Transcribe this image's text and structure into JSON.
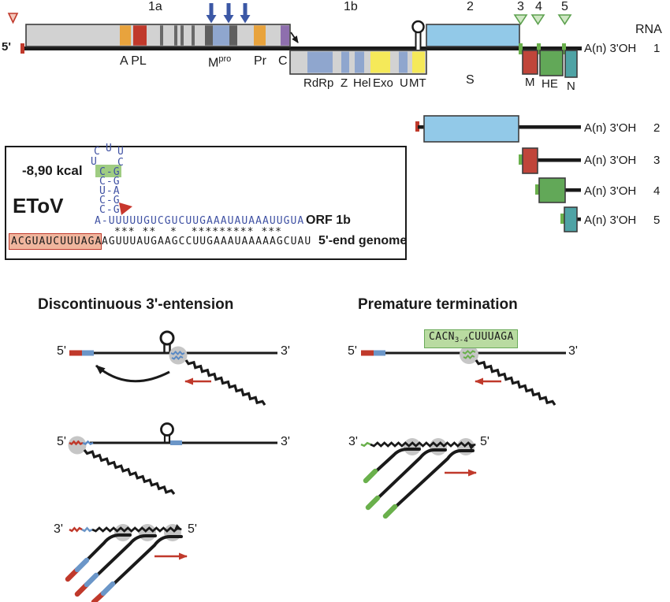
{
  "colors": {
    "line_black": "#1a1a1a",
    "box_gray": "#d2d2d2",
    "box_stroke": "#3d3d3d",
    "orange": "#e8a33d",
    "red": "#c0392b",
    "red_box_m": "#c0453a",
    "steel_blue_domain": "#8fa6ce",
    "purple": "#8e6fae",
    "yellow": "#f5e959",
    "light_blue_s": "#92c9e8",
    "green_he": "#62a858",
    "teal_n": "#4fa3a5",
    "green_tick": "#6ab04c",
    "arrow_blue": "#3b57a5",
    "arrow_red": "#c0392b",
    "rna_blue_seg": "#6b96c8",
    "polymerase_gray": "#c6c6c6",
    "highlight_green": "#9fcc82",
    "highlight_salmon": "#f0b69e",
    "sequence_blue": "#3f51a3"
  },
  "genome": {
    "orf1a": "1a",
    "orf1b": "1b",
    "orf2": "2",
    "orf3": "3",
    "orf4": "4",
    "orf5": "5",
    "five_prime": "5'",
    "dom_a_pl": "A PL",
    "dom_m_base": "M",
    "dom_m_sup": "pro",
    "dom_pr": "Pr",
    "dom_c": "C",
    "dom_rdrp": "RdRp",
    "dom_z": "Z",
    "dom_hel": "Hel",
    "dom_exo": "Exo",
    "dom_u": "U",
    "dom_mt": "MT",
    "dom_s": "S",
    "dom_m": "M",
    "dom_he": "HE",
    "dom_n": "N",
    "rna_header": "RNA",
    "rnas": [
      {
        "tail": "A(n) 3'OH",
        "num": "1"
      },
      {
        "tail": "A(n) 3'OH",
        "num": "2"
      },
      {
        "tail": "A(n) 3'OH",
        "num": "3"
      },
      {
        "tail": "A(n) 3'OH",
        "num": "4"
      },
      {
        "tail": "A(n) 3'OH",
        "num": "5"
      }
    ]
  },
  "inset": {
    "energy": "-8,90 kcal",
    "virus": "EToV",
    "loop_top": [
      "C",
      "U",
      "U"
    ],
    "loop_side": [
      "U",
      "C"
    ],
    "stem_pairs": [
      "C-G",
      "C-G",
      "U-A",
      "C-G",
      "C-G"
    ],
    "blue_seq": "A-UUUUUGUCGUCUUGAAAUAUAAAUUGUA",
    "match_stars": "*** **  *  ********* ***",
    "boxed_seq": "ACGUAUCUUUAGA",
    "genome_seq": "AGUUUAUGAAGCCUUGAAAUAAAAAGCUAU",
    "orf1b_label": "ORF 1b",
    "genome_label": "5'-end genome"
  },
  "panels": {
    "left_title": "Discontinuous 3'-entension",
    "right_title": "Premature termination",
    "cac_pre": "CACN",
    "cac_sub": "3-4",
    "cac_post": "CUUUAGA",
    "five": "5'",
    "three": "3'"
  }
}
